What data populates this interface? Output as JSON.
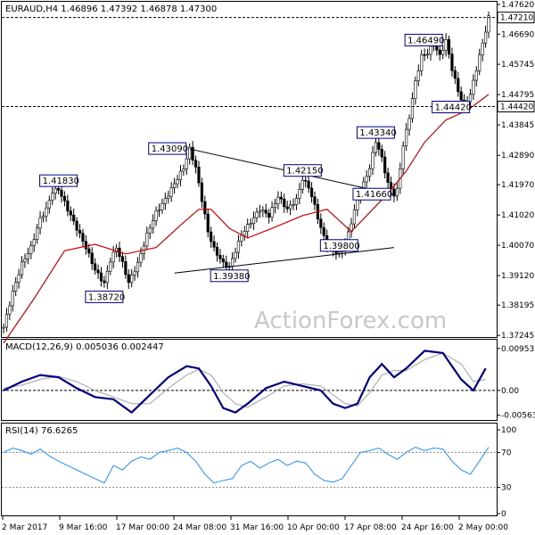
{
  "chart_data": [
    {
      "type": "candlestick",
      "title": "EURAUD,H4  1.46896 1.47392 1.46878 1.47300",
      "watermark": "ActionForex.com",
      "ylim": [
        1.3725,
        1.4762
      ],
      "y_ticks": [
        "1.47620",
        "1.46690",
        "1.45745",
        "1.44795",
        "1.43845",
        "1.42890",
        "1.41970",
        "1.41020",
        "1.40070",
        "1.39120",
        "1.38195",
        "1.37245"
      ],
      "x_ticks": [
        "2 Mar 2017",
        "9 Mar 16:00",
        "17 Mar 00:00",
        "24 Mar 08:00",
        "31 Mar 16:00",
        "10 Apr 00:00",
        "17 Apr 08:00",
        "24 Apr 16:00",
        "2 May 00:00"
      ],
      "price_path": [
        [
          0,
          1.375
        ],
        [
          3,
          1.386
        ],
        [
          6,
          1.395
        ],
        [
          9,
          1.4
        ],
        [
          12,
          1.409
        ],
        [
          14,
          1.412
        ],
        [
          16,
          1.4175
        ],
        [
          18,
          1.4183
        ],
        [
          21,
          1.412
        ],
        [
          24,
          1.406
        ],
        [
          27,
          1.4
        ],
        [
          30,
          1.393
        ],
        [
          33,
          1.3887
        ],
        [
          35,
          1.396
        ],
        [
          37,
          1.4
        ],
        [
          39,
          1.395
        ],
        [
          41,
          1.389
        ],
        [
          44,
          1.395
        ],
        [
          47,
          1.404
        ],
        [
          50,
          1.411
        ],
        [
          53,
          1.415
        ],
        [
          56,
          1.42
        ],
        [
          59,
          1.425
        ],
        [
          61,
          1.4309
        ],
        [
          63,
          1.425
        ],
        [
          65,
          1.415
        ],
        [
          67,
          1.405
        ],
        [
          69,
          1.3995
        ],
        [
          72,
          1.395
        ],
        [
          74,
          1.3938
        ],
        [
          76,
          1.399
        ],
        [
          78,
          1.404
        ],
        [
          81,
          1.408
        ],
        [
          84,
          1.412
        ],
        [
          87,
          1.41
        ],
        [
          90,
          1.416
        ],
        [
          93,
          1.412
        ],
        [
          96,
          1.415
        ],
        [
          98,
          1.4215
        ],
        [
          100,
          1.419
        ],
        [
          102,
          1.413
        ],
        [
          104,
          1.406
        ],
        [
          106,
          1.401
        ],
        [
          108,
          1.399
        ],
        [
          110,
          1.398
        ],
        [
          112,
          1.401
        ],
        [
          114,
          1.408
        ],
        [
          116,
          1.415
        ],
        [
          118,
          1.42
        ],
        [
          120,
          1.425
        ],
        [
          122,
          1.4334
        ],
        [
          124,
          1.428
        ],
        [
          126,
          1.42
        ],
        [
          128,
          1.4166
        ],
        [
          129,
          1.418
        ],
        [
          131,
          1.432
        ],
        [
          133,
          1.441
        ],
        [
          135,
          1.452
        ],
        [
          137,
          1.46
        ],
        [
          139,
          1.461
        ],
        [
          141,
          1.464
        ],
        [
          143,
          1.46
        ],
        [
          145,
          1.4649
        ],
        [
          147,
          1.456
        ],
        [
          149,
          1.449
        ],
        [
          151,
          1.4442
        ],
        [
          153,
          1.448
        ],
        [
          155,
          1.456
        ],
        [
          157,
          1.464
        ],
        [
          159,
          1.4721
        ]
      ],
      "ma_path": [
        [
          0,
          1.37
        ],
        [
          10,
          1.384
        ],
        [
          20,
          1.399
        ],
        [
          30,
          1.401
        ],
        [
          40,
          1.398
        ],
        [
          50,
          1.4
        ],
        [
          58,
          1.407
        ],
        [
          64,
          1.412
        ],
        [
          68,
          1.412
        ],
        [
          74,
          1.406
        ],
        [
          80,
          1.403
        ],
        [
          88,
          1.406
        ],
        [
          98,
          1.41
        ],
        [
          106,
          1.412
        ],
        [
          114,
          1.405
        ],
        [
          120,
          1.411
        ],
        [
          126,
          1.417
        ],
        [
          132,
          1.424
        ],
        [
          138,
          1.433
        ],
        [
          145,
          1.44
        ],
        [
          152,
          1.443
        ],
        [
          159,
          1.448
        ]
      ],
      "annotations": [
        {
          "text": "1.41830",
          "x": 18,
          "y": 1.4183
        },
        {
          "text": "1.38720",
          "x": 33,
          "y": 1.3872
        },
        {
          "text": "1.43090",
          "x": 61,
          "y": 1.4309
        },
        {
          "text": "1.39380",
          "x": 74,
          "y": 1.3938
        },
        {
          "text": "1.42150",
          "x": 98,
          "y": 1.4215
        },
        {
          "text": "1.39800",
          "x": 110,
          "y": 1.398
        },
        {
          "text": "1.43340",
          "x": 122,
          "y": 1.4334
        },
        {
          "text": "1.41660",
          "x": 128,
          "y": 1.4166
        },
        {
          "text": "1.46490",
          "x": 145,
          "y": 1.4649
        },
        {
          "text": "1.44420",
          "x": 151,
          "y": 1.4442
        }
      ],
      "trendlines": [
        {
          "x1": 61,
          "y1": 1.4309,
          "x2": 128,
          "y2": 1.4166
        },
        {
          "x1": 56,
          "y1": 1.392,
          "x2": 128,
          "y2": 1.4
        }
      ],
      "hlines": [
        {
          "y": 1.4721,
          "label": "1.47210"
        },
        {
          "y": 1.4442,
          "label": "1.44420"
        }
      ]
    },
    {
      "type": "line",
      "title": "MACD(12,26,9) 0.005036 0.002447",
      "ylim": [
        -0.0065,
        0.0105
      ],
      "y_ticks": [
        "0.009538",
        "0.00",
        "-0.005637"
      ],
      "macd": [
        [
          0,
          0.0
        ],
        [
          6,
          0.002
        ],
        [
          12,
          0.0035
        ],
        [
          18,
          0.003
        ],
        [
          24,
          0.0005
        ],
        [
          30,
          -0.0015
        ],
        [
          36,
          -0.002
        ],
        [
          42,
          -0.005
        ],
        [
          48,
          -0.001
        ],
        [
          54,
          0.003
        ],
        [
          60,
          0.0055
        ],
        [
          64,
          0.005
        ],
        [
          68,
          0.001
        ],
        [
          72,
          -0.004
        ],
        [
          76,
          -0.005
        ],
        [
          80,
          -0.003
        ],
        [
          86,
          0.0005
        ],
        [
          92,
          0.002
        ],
        [
          98,
          0.001
        ],
        [
          104,
          0.0
        ],
        [
          108,
          -0.003
        ],
        [
          112,
          -0.004
        ],
        [
          116,
          -0.003
        ],
        [
          120,
          0.003
        ],
        [
          124,
          0.006
        ],
        [
          128,
          0.003
        ],
        [
          132,
          0.005
        ],
        [
          138,
          0.009
        ],
        [
          144,
          0.0085
        ],
        [
          150,
          0.0025
        ],
        [
          154,
          0.0
        ],
        [
          158,
          0.005
        ]
      ],
      "signal": [
        [
          0,
          0.0005
        ],
        [
          6,
          0.0012
        ],
        [
          12,
          0.0025
        ],
        [
          18,
          0.0032
        ],
        [
          24,
          0.002
        ],
        [
          30,
          0.0
        ],
        [
          36,
          -0.0015
        ],
        [
          42,
          -0.003
        ],
        [
          48,
          -0.003
        ],
        [
          54,
          0.0005
        ],
        [
          60,
          0.0035
        ],
        [
          64,
          0.0048
        ],
        [
          68,
          0.0035
        ],
        [
          72,
          -0.0005
        ],
        [
          76,
          -0.003
        ],
        [
          80,
          -0.0038
        ],
        [
          86,
          -0.0015
        ],
        [
          92,
          0.001
        ],
        [
          98,
          0.0015
        ],
        [
          104,
          0.001
        ],
        [
          108,
          -0.001
        ],
        [
          112,
          -0.003
        ],
        [
          116,
          -0.0035
        ],
        [
          120,
          -0.0005
        ],
        [
          124,
          0.0035
        ],
        [
          128,
          0.0045
        ],
        [
          132,
          0.0045
        ],
        [
          138,
          0.007
        ],
        [
          144,
          0.0085
        ],
        [
          150,
          0.006
        ],
        [
          154,
          0.002
        ],
        [
          158,
          0.0025
        ]
      ]
    },
    {
      "type": "line",
      "title": "RSI(14) 76.6265",
      "ylim": [
        0,
        100
      ],
      "y_ticks": [
        "100",
        "70",
        "30",
        "0"
      ],
      "rsi": [
        [
          0,
          70
        ],
        [
          3,
          75
        ],
        [
          6,
          72
        ],
        [
          9,
          68
        ],
        [
          12,
          74
        ],
        [
          15,
          66
        ],
        [
          18,
          60
        ],
        [
          21,
          55
        ],
        [
          24,
          50
        ],
        [
          27,
          45
        ],
        [
          30,
          40
        ],
        [
          33,
          35
        ],
        [
          36,
          55
        ],
        [
          39,
          50
        ],
        [
          42,
          60
        ],
        [
          45,
          65
        ],
        [
          48,
          62
        ],
        [
          51,
          70
        ],
        [
          54,
          72
        ],
        [
          57,
          75
        ],
        [
          60,
          70
        ],
        [
          63,
          60
        ],
        [
          66,
          45
        ],
        [
          69,
          35
        ],
        [
          72,
          38
        ],
        [
          75,
          40
        ],
        [
          78,
          55
        ],
        [
          81,
          60
        ],
        [
          84,
          52
        ],
        [
          87,
          58
        ],
        [
          90,
          62
        ],
        [
          93,
          55
        ],
        [
          96,
          60
        ],
        [
          99,
          58
        ],
        [
          102,
          45
        ],
        [
          105,
          38
        ],
        [
          108,
          36
        ],
        [
          111,
          40
        ],
        [
          114,
          55
        ],
        [
          117,
          70
        ],
        [
          120,
          72
        ],
        [
          123,
          75
        ],
        [
          126,
          68
        ],
        [
          129,
          62
        ],
        [
          132,
          70
        ],
        [
          135,
          76
        ],
        [
          138,
          72
        ],
        [
          141,
          75
        ],
        [
          144,
          74
        ],
        [
          147,
          60
        ],
        [
          150,
          50
        ],
        [
          153,
          45
        ],
        [
          156,
          60
        ],
        [
          159,
          76
        ]
      ]
    }
  ]
}
